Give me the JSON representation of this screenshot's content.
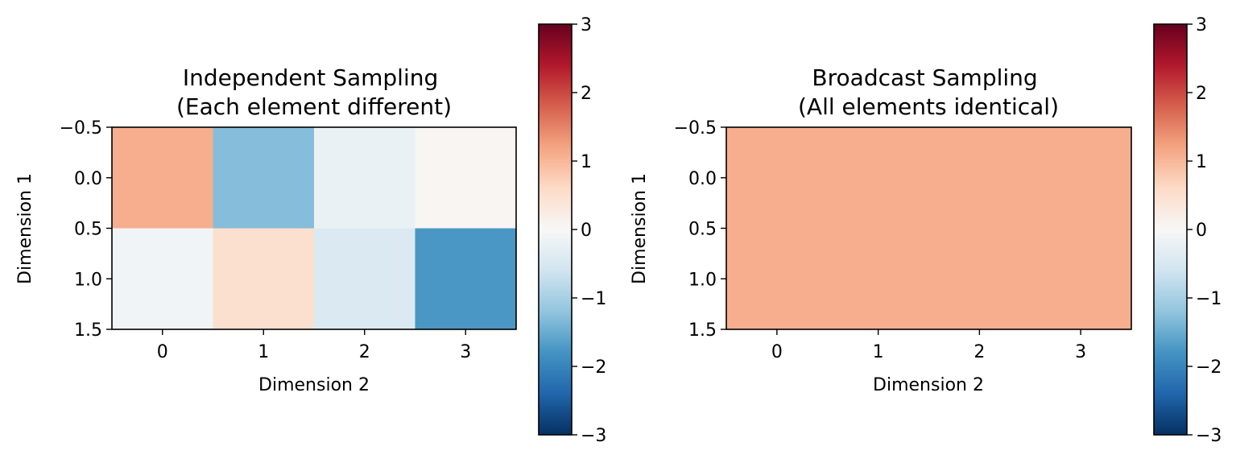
{
  "chart_data": [
    {
      "type": "heatmap",
      "title": "Independent Sampling\n(Each element different)",
      "xlabel": "Dimension 2",
      "ylabel": "Dimension 1",
      "x_ticks": [
        "0",
        "1",
        "2",
        "3"
      ],
      "y_ticks": [
        "−0.5",
        "0.0",
        "0.5",
        "1.0",
        "1.5"
      ],
      "xlim": [
        -0.5,
        3.5
      ],
      "ylim": [
        1.5,
        -0.5
      ],
      "rows": 2,
      "cols": 4,
      "values": [
        [
          1.1,
          -1.3,
          -0.2,
          0.05
        ],
        [
          -0.1,
          0.5,
          -0.45,
          -1.75
        ]
      ],
      "colormap": "RdBu_r",
      "colorbar": {
        "min": -3,
        "max": 3,
        "ticks": [
          "3",
          "2",
          "1",
          "0",
          "−1",
          "−2",
          "−3"
        ]
      }
    },
    {
      "type": "heatmap",
      "title": "Broadcast Sampling\n(All elements identical)",
      "xlabel": "Dimension 2",
      "ylabel": "Dimension 1",
      "x_ticks": [
        "0",
        "1",
        "2",
        "3"
      ],
      "y_ticks": [
        "−0.5",
        "0.0",
        "0.5",
        "1.0",
        "1.5"
      ],
      "xlim": [
        -0.5,
        3.5
      ],
      "ylim": [
        1.5,
        -0.5
      ],
      "rows": 2,
      "cols": 4,
      "values": [
        [
          1.1,
          1.1,
          1.1,
          1.1
        ],
        [
          1.1,
          1.1,
          1.1,
          1.1
        ]
      ],
      "colormap": "RdBu_r",
      "colorbar": {
        "min": -3,
        "max": 3,
        "ticks": [
          "3",
          "2",
          "1",
          "0",
          "−1",
          "−2",
          "−3"
        ]
      }
    }
  ]
}
